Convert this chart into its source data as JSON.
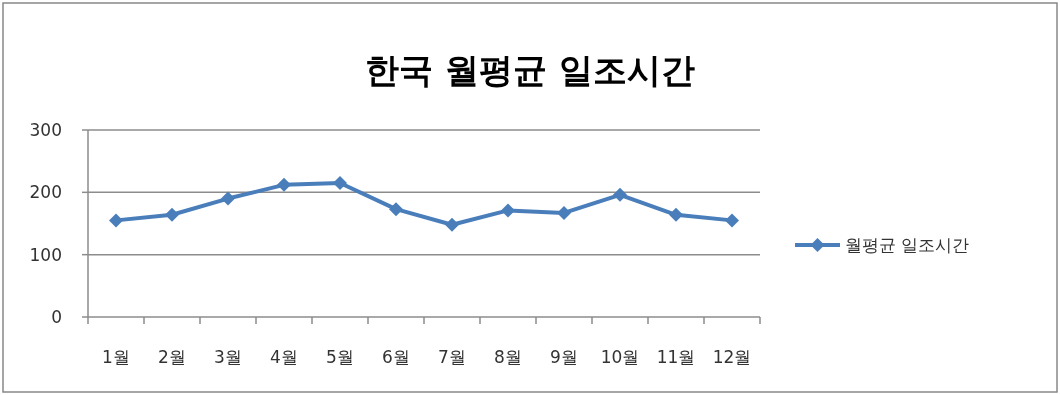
{
  "chart_data": {
    "type": "line",
    "title": "한국 월평균 일조시간",
    "categories": [
      "1월",
      "2월",
      "3월",
      "4월",
      "5월",
      "6월",
      "7월",
      "8월",
      "9월",
      "10월",
      "11월",
      "12월"
    ],
    "series": [
      {
        "name": "월평균 일조시간",
        "color": "#4a7ebb",
        "values": [
          155,
          164,
          190,
          212,
          215,
          173,
          148,
          171,
          167,
          196,
          164,
          155
        ]
      }
    ],
    "ylim": [
      0,
      300
    ],
    "yticks": [
      0,
      100,
      200,
      300
    ],
    "grid": "y",
    "legend": "right",
    "marker": "diamond",
    "line_style": "solid"
  }
}
